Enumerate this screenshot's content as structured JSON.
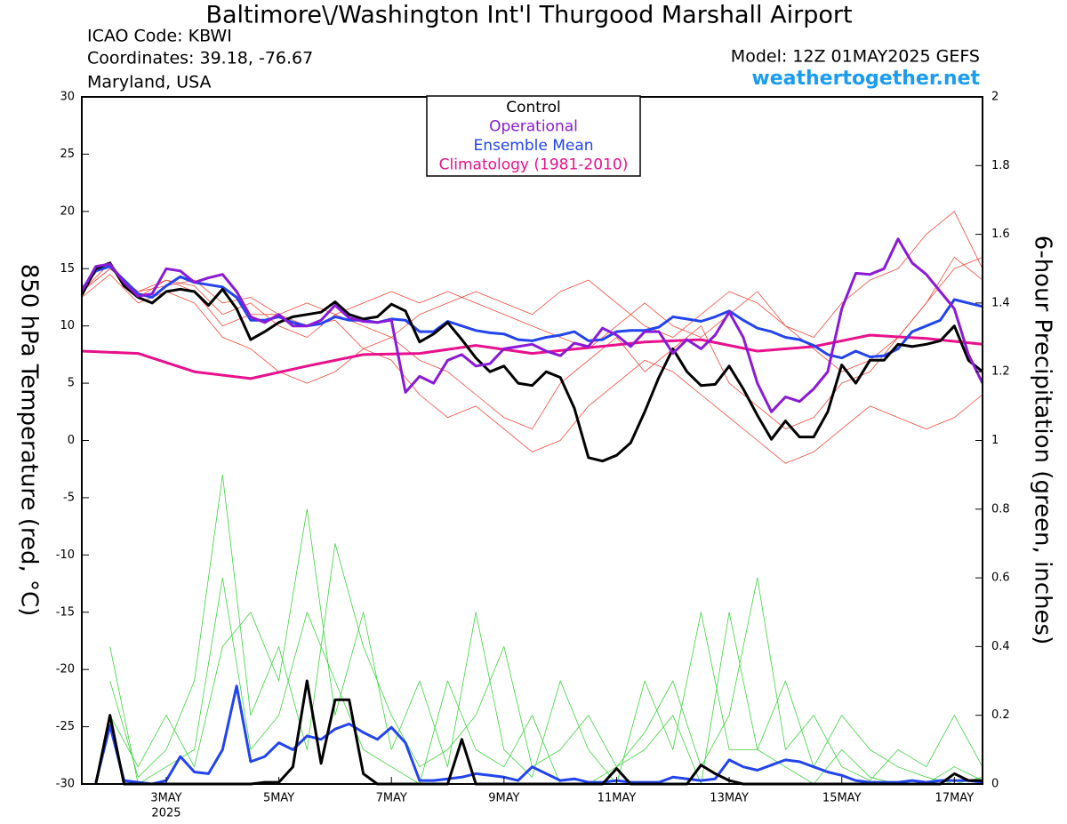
{
  "chart_data": {
    "type": "line",
    "title": "Baltimore\\/Washington Int'l Thurgood Marshall Airport",
    "info_left": [
      "ICAO Code: KBWI",
      "Coordinates: 39.18, -76.67",
      "Maryland, USA"
    ],
    "model": "Model: 12Z 01MAY2025 GEFS",
    "site": "weathertogether.net",
    "y_label": "850 hPa Temperature (red, °C)",
    "y2_label": "6-hour Precipitation (green, inches)",
    "x_sublabel": "2025",
    "xlim": [
      1.5,
      17.5
    ],
    "xticks": [
      {
        "value": 3,
        "label": "3MAY"
      },
      {
        "value": 5,
        "label": "5MAY"
      },
      {
        "value": 7,
        "label": "7MAY"
      },
      {
        "value": 9,
        "label": "9MAY"
      },
      {
        "value": 11,
        "label": "11MAY"
      },
      {
        "value": 13,
        "label": "13MAY"
      },
      {
        "value": 15,
        "label": "15MAY"
      },
      {
        "value": 17,
        "label": "17MAY"
      }
    ],
    "ylim": [
      -30,
      30
    ],
    "yticks": [
      -30,
      -25,
      -20,
      -15,
      -10,
      -5,
      0,
      5,
      10,
      15,
      20,
      25,
      30
    ],
    "y2lim": [
      0,
      2
    ],
    "y2ticks": [
      0,
      0.2,
      0.4,
      0.6,
      0.8,
      1,
      1.2,
      1.4,
      1.6,
      1.8,
      2
    ],
    "x": [
      1.5,
      1.75,
      2,
      2.25,
      2.5,
      2.75,
      3,
      3.25,
      3.5,
      3.75,
      4,
      4.25,
      4.5,
      4.75,
      5,
      5.25,
      5.5,
      5.75,
      6,
      6.25,
      6.5,
      6.75,
      7,
      7.25,
      7.5,
      7.75,
      8,
      8.25,
      8.5,
      8.75,
      9,
      9.25,
      9.5,
      9.75,
      10,
      10.25,
      10.5,
      10.75,
      11,
      11.25,
      11.5,
      11.75,
      12,
      12.25,
      12.5,
      12.75,
      13,
      13.25,
      13.5,
      13.75,
      14,
      14.25,
      14.5,
      14.75,
      15,
      15.25,
      15.5,
      15.75,
      16,
      16.25,
      16.5,
      16.75,
      17,
      17.25,
      17.5
    ],
    "ensemble_members": {
      "x": [
        1.5,
        2,
        2.5,
        3,
        3.5,
        4,
        4.5,
        5,
        5.5,
        6,
        6.5,
        7,
        7.5,
        8,
        8.5,
        9,
        9.5,
        10,
        10.5,
        11,
        11.5,
        12,
        12.5,
        13,
        13.5,
        14,
        14.5,
        15,
        15.5,
        16,
        16.5,
        17,
        17.5
      ],
      "temperature_color": "#f04a3a",
      "precipitation_color": "#3ed43e",
      "temperature": [
        [
          13,
          15.5,
          12.5,
          14,
          13,
          10,
          11,
          11,
          10,
          10.5,
          8,
          9,
          7,
          6,
          4,
          2,
          1,
          5,
          7,
          9,
          6,
          8,
          10,
          5,
          3,
          1,
          2,
          5,
          6,
          9,
          12,
          16,
          14
        ],
        [
          13,
          15,
          13,
          13.5,
          14,
          12,
          12.5,
          11,
          12,
          11,
          12,
          13,
          12,
          13,
          12,
          11,
          10,
          9,
          8,
          10,
          12,
          10,
          9,
          11,
          13,
          10,
          8,
          6,
          7,
          9,
          12,
          15,
          16
        ],
        [
          12.5,
          14.5,
          12,
          13,
          12,
          9,
          8,
          6,
          5,
          6,
          8,
          7,
          4,
          2,
          3,
          1,
          -1,
          0,
          3,
          5,
          7,
          6,
          4,
          2,
          0,
          -2,
          -1,
          1,
          3,
          2,
          1,
          2,
          4
        ],
        [
          13,
          15,
          13,
          14,
          13.5,
          11,
          12,
          10,
          9,
          11,
          10,
          9,
          11,
          12,
          13,
          12,
          11,
          13,
          14,
          12,
          10,
          9,
          11,
          13,
          12,
          10,
          9,
          12,
          14,
          15,
          18,
          20,
          15
        ]
      ],
      "precipitation": [
        [
          null,
          0.4,
          0,
          0.05,
          0.1,
          0.6,
          0.1,
          0.2,
          0.5,
          0.3,
          0.1,
          0.05,
          0,
          0.3,
          0.1,
          0.05,
          0.2,
          0,
          0,
          0.05,
          0.1,
          0.2,
          0,
          0.5,
          0.1,
          0.05,
          0,
          0.1,
          0.02,
          0,
          0,
          0.05,
          0.01
        ],
        [
          null,
          0.3,
          0.02,
          0.1,
          0.3,
          0.9,
          0.2,
          0.4,
          0.1,
          0.7,
          0.4,
          0.2,
          0.05,
          0.1,
          0.2,
          0.4,
          0.05,
          0.1,
          0.2,
          0.05,
          0.15,
          0.3,
          0.05,
          0.2,
          0.6,
          0.1,
          0.2,
          0.05,
          0.01,
          0.1,
          0.05,
          0.2,
          0.05
        ],
        [
          null,
          0.2,
          0.05,
          0.2,
          0.05,
          0.4,
          0.5,
          0.3,
          0.8,
          0.2,
          0.5,
          0.1,
          0.3,
          0.05,
          0.5,
          0.1,
          0.02,
          0.3,
          0.1,
          0,
          0.3,
          0.1,
          0.5,
          0.1,
          0.1,
          0.3,
          0.05,
          0.2,
          0.1,
          0.05,
          0.02,
          0,
          0.02
        ]
      ]
    },
    "series": [
      {
        "name": "Climatology (1981-2010)",
        "color": "#e8108c",
        "width": 3,
        "x": [
          1.5,
          2.5,
          3.5,
          4.5,
          5.5,
          6.5,
          7.5,
          8.5,
          9.5,
          10.5,
          11.5,
          12.5,
          13.5,
          14.5,
          15.5,
          16.5,
          17.5
        ],
        "values": [
          7.8,
          7.6,
          6.0,
          5.4,
          6.5,
          7.5,
          7.6,
          8.3,
          7.6,
          8.1,
          8.6,
          8.8,
          7.8,
          8.2,
          9.2,
          8.9,
          8.4
        ]
      },
      {
        "name": "Ensemble Mean",
        "color": "#2244ee",
        "width": 3,
        "axis": "y2",
        "values": [
          null,
          0.005,
          0.17,
          0.01,
          0.005,
          0,
          0.01,
          0.08,
          0.035,
          0.03,
          0.1,
          0.285,
          0.065,
          0.08,
          0.12,
          0.1,
          0.14,
          0.13,
          0.16,
          0.175,
          0.15,
          0.13,
          0.165,
          0.12,
          0.01,
          0.01,
          0.015,
          0.02,
          0.03,
          0.025,
          0.02,
          0.01,
          0.05,
          0.03,
          0.01,
          0.015,
          0.005,
          0.005,
          0.01,
          0.005,
          0.005,
          0.005,
          0.02,
          0.015,
          0.01,
          0.015,
          0.07,
          0.05,
          0.04,
          0.055,
          0.07,
          0.065,
          0.05,
          0.035,
          0.025,
          0.01,
          0.005,
          0.005,
          0.005,
          0.01,
          0.005,
          0.01,
          0.01,
          0.01,
          0.005
        ]
      },
      {
        "name": "Control",
        "color": "#000000",
        "width": 3,
        "axis": "y2",
        "values": [
          null,
          0,
          0.2,
          0,
          0,
          0,
          0,
          0,
          0,
          0,
          0,
          0,
          0,
          0.005,
          0.005,
          0.05,
          0.3,
          0.06,
          0.245,
          0.245,
          0.03,
          0,
          0,
          0,
          0,
          0,
          0,
          0.13,
          0,
          0,
          0,
          0,
          0,
          0,
          0,
          0,
          0,
          0,
          0.045,
          0,
          0,
          0,
          0,
          0,
          0.055,
          0.03,
          0.01,
          0,
          0,
          0,
          0,
          0,
          0,
          0,
          0,
          0,
          0,
          0,
          0,
          0,
          0,
          0,
          0.03,
          0.01,
          0.01
        ]
      },
      {
        "name": "Ensemble Mean",
        "color": "#2244ee",
        "width": 3,
        "legend": 2,
        "values": [
          13.2,
          14.8,
          15.2,
          14.0,
          12.8,
          12.5,
          13.5,
          14.3,
          13.8,
          13.6,
          13.4,
          12.5,
          10.5,
          10.5,
          10.8,
          10.3,
          10.0,
          10.2,
          10.8,
          10.5,
          10.5,
          10.3,
          10.6,
          10.5,
          9.5,
          9.5,
          10.4,
          10.0,
          9.6,
          9.4,
          9.3,
          8.8,
          8.7,
          9.0,
          9.2,
          9.5,
          8.7,
          8.8,
          9.5,
          9.6,
          9.6,
          9.9,
          10.8,
          10.6,
          10.4,
          10.8,
          11.3,
          10.5,
          9.8,
          9.5,
          9.0,
          8.8,
          8.3,
          7.5,
          7.2,
          7.8,
          7.3,
          7.4,
          8.0,
          9.5,
          10.0,
          10.5,
          12.3,
          12.0,
          11.7
        ]
      },
      {
        "name": "Control",
        "color": "#000000",
        "width": 3,
        "legend": 0,
        "values": [
          12.7,
          15.0,
          15.5,
          13.5,
          12.5,
          12.0,
          13.0,
          13.2,
          13.0,
          11.8,
          13.2,
          11.5,
          8.8,
          9.5,
          10.3,
          10.8,
          11.0,
          11.2,
          12.1,
          11.0,
          10.6,
          10.8,
          11.9,
          11.3,
          8.6,
          9.3,
          10.3,
          8.8,
          7.2,
          6.0,
          6.5,
          5.0,
          4.8,
          6.0,
          5.5,
          2.8,
          -1.5,
          -1.8,
          -1.3,
          -0.2,
          2.5,
          5.5,
          8.0,
          6.0,
          4.8,
          4.9,
          6.5,
          4.5,
          2.2,
          0.1,
          1.7,
          0.3,
          0.3,
          2.5,
          6.6,
          5.0,
          7.0,
          7.0,
          8.4,
          8.2,
          8.4,
          8.7,
          10.0,
          7.0,
          6.0
        ]
      },
      {
        "name": "Operational",
        "color": "#8a1ad6",
        "width": 3,
        "legend": 1,
        "values": [
          13.0,
          15.2,
          15.4,
          13.8,
          12.6,
          12.8,
          15.0,
          14.8,
          13.8,
          14.2,
          14.5,
          13.0,
          10.8,
          10.3,
          11.0,
          10.0,
          10.0,
          10.5,
          11.8,
          10.7,
          10.4,
          10.3,
          10.5,
          4.2,
          5.6,
          5.0,
          7.0,
          7.5,
          6.5,
          6.7,
          8.0,
          8.2,
          8.4,
          7.8,
          7.4,
          8.5,
          8.2,
          9.8,
          9.2,
          8.2,
          9.5,
          9.5,
          7.6,
          8.8,
          8.0,
          9.2,
          11.2,
          9.0,
          5.0,
          2.5,
          3.8,
          3.4,
          4.5,
          6.0,
          11.5,
          14.6,
          14.5,
          15.0,
          17.6,
          15.5,
          14.5,
          13.0,
          11.5,
          7.5,
          5.0
        ]
      }
    ]
  }
}
